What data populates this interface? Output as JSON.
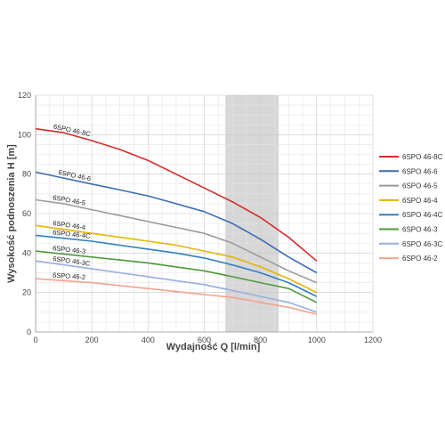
{
  "chart_data": {
    "type": "line",
    "title": "",
    "xlabel": "Wydajność Q [l/min]",
    "ylabel": "Wysokość podnoszenia H [m]",
    "xlim": [
      0,
      1200
    ],
    "ylim": [
      0,
      120
    ],
    "xticks": [
      0,
      200,
      400,
      600,
      800,
      1000,
      1200
    ],
    "yticks": [
      0,
      20,
      40,
      60,
      80,
      100,
      120
    ],
    "grid": true,
    "legend_position": "right",
    "shaded_band": [
      675,
      865
    ],
    "series": [
      {
        "name": "6SPO 46-8C",
        "label": "6SPO 46-8C",
        "color": "#d62a2a",
        "x": [
          0,
          100,
          200,
          300,
          400,
          500,
          600,
          700,
          800,
          900,
          1000
        ],
        "y": [
          103,
          101,
          97,
          92.5,
          87,
          80,
          73,
          66,
          58,
          48,
          36
        ]
      },
      {
        "name": "6SPO 46-6",
        "label": "6SPO 46-6",
        "color": "#3c6cb4",
        "x": [
          0,
          100,
          200,
          300,
          400,
          500,
          600,
          700,
          800,
          900,
          1000
        ],
        "y": [
          81,
          78,
          75,
          72,
          69,
          65,
          61,
          55,
          47,
          38,
          30
        ]
      },
      {
        "name": "6SPO 46-5",
        "label": "6SPO 46-5",
        "color": "#9a9a9a",
        "x": [
          0,
          100,
          200,
          300,
          400,
          500,
          600,
          700,
          800,
          900,
          1000
        ],
        "y": [
          67,
          65,
          62,
          59,
          56,
          53,
          50,
          45,
          38,
          31,
          25
        ]
      },
      {
        "name": "6SPO 46-4",
        "label": "6SPO 46-4",
        "color": "#e3b500",
        "x": [
          0,
          100,
          200,
          300,
          400,
          500,
          600,
          700,
          800,
          900,
          1000
        ],
        "y": [
          54,
          52,
          50,
          48,
          46,
          44,
          41,
          38,
          33,
          27,
          20
        ]
      },
      {
        "name": "6SPO 46-4C",
        "label": "6SPO 46-4C",
        "color": "#2e7fc1",
        "x": [
          0,
          100,
          200,
          300,
          400,
          500,
          600,
          700,
          800,
          900,
          1000
        ],
        "y": [
          49,
          47.5,
          46,
          44,
          42,
          40,
          37.5,
          34,
          30,
          25,
          18
        ]
      },
      {
        "name": "6SPO 46-3",
        "label": "6SPO 46-3",
        "color": "#4f9a3a",
        "x": [
          0,
          100,
          200,
          300,
          400,
          500,
          600,
          700,
          800,
          900,
          1000
        ],
        "y": [
          41,
          39.5,
          38,
          36.5,
          35,
          33,
          31,
          28,
          25,
          22,
          15
        ]
      },
      {
        "name": "6SPO 46-3C",
        "label": "6SPO 46-3C",
        "color": "#98aedd",
        "x": [
          0,
          100,
          200,
          300,
          400,
          500,
          600,
          700,
          800,
          900,
          1000
        ],
        "y": [
          36,
          34,
          32,
          30,
          28,
          26,
          24,
          21,
          18,
          15,
          10
        ]
      },
      {
        "name": "6SPO 46-2",
        "label": "6SPO 46-2",
        "color": "#f2a48e",
        "x": [
          0,
          100,
          200,
          300,
          400,
          500,
          600,
          700,
          800,
          900,
          1000
        ],
        "y": [
          27,
          26,
          25,
          23.5,
          22,
          20.5,
          19,
          17.5,
          15,
          12.5,
          9
        ]
      }
    ]
  }
}
